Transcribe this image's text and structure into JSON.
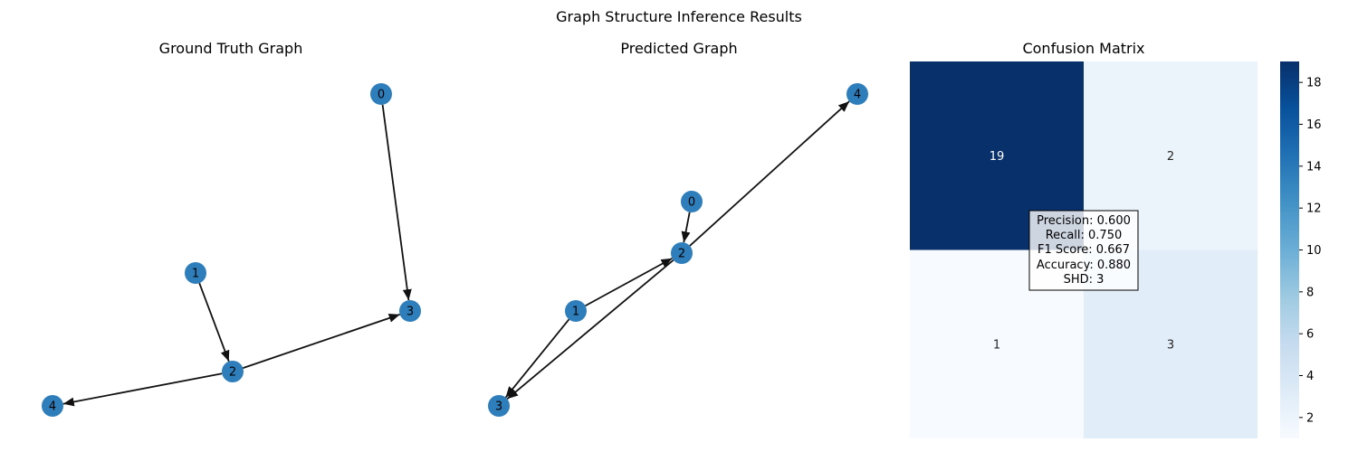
{
  "figure": {
    "suptitle": "Graph Structure Inference Results"
  },
  "colors": {
    "node": "#2f7ebc",
    "edge": "#111111",
    "cmap": [
      "#f7fbff",
      "#deebf7",
      "#c6dbef",
      "#9ecae1",
      "#6baed6",
      "#4292c6",
      "#2171b5",
      "#08519c",
      "#08306b"
    ]
  },
  "chart_data": [
    {
      "type": "network",
      "title": "Ground Truth Graph",
      "nodes": [
        "0",
        "1",
        "2",
        "3",
        "4"
      ],
      "edges": [
        [
          "0",
          "3"
        ],
        [
          "1",
          "2"
        ],
        [
          "2",
          "3"
        ],
        [
          "2",
          "4"
        ]
      ]
    },
    {
      "type": "network",
      "title": "Predicted Graph",
      "nodes": [
        "0",
        "1",
        "2",
        "3",
        "4"
      ],
      "edges": [
        [
          "0",
          "2"
        ],
        [
          "1",
          "2"
        ],
        [
          "1",
          "3"
        ],
        [
          "2",
          "3"
        ],
        [
          "2",
          "4"
        ]
      ]
    },
    {
      "type": "heatmap",
      "title": "Confusion Matrix",
      "matrix": [
        [
          19,
          2
        ],
        [
          1,
          3
        ]
      ],
      "colorbar": {
        "ticks": [
          2,
          4,
          6,
          8,
          10,
          12,
          14,
          16,
          18
        ],
        "range": [
          1,
          19
        ],
        "colormap": "Blues"
      },
      "metrics": [
        "Precision: 0.600",
        "Recall: 0.750",
        "F1 Score: 0.667",
        "Accuracy: 0.880",
        "SHD: 3"
      ]
    }
  ]
}
